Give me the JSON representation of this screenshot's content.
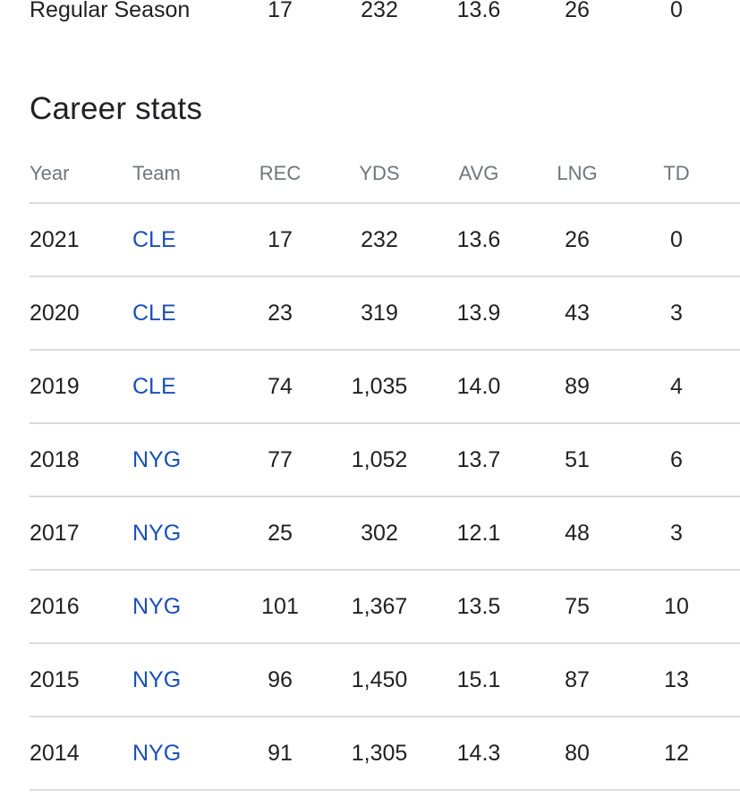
{
  "season_summary": {
    "label": "Regular Season",
    "rec": "17",
    "yds": "232",
    "avg": "13.6",
    "lng": "26",
    "td": "0"
  },
  "career": {
    "title": "Career stats",
    "columns": {
      "year": "Year",
      "team": "Team",
      "rec": "REC",
      "yds": "YDS",
      "avg": "AVG",
      "lng": "LNG",
      "td": "TD"
    },
    "rows": [
      {
        "year": "2021",
        "team": "CLE",
        "rec": "17",
        "yds": "232",
        "avg": "13.6",
        "lng": "26",
        "td": "0"
      },
      {
        "year": "2020",
        "team": "CLE",
        "rec": "23",
        "yds": "319",
        "avg": "13.9",
        "lng": "43",
        "td": "3"
      },
      {
        "year": "2019",
        "team": "CLE",
        "rec": "74",
        "yds": "1,035",
        "avg": "14.0",
        "lng": "89",
        "td": "4"
      },
      {
        "year": "2018",
        "team": "NYG",
        "rec": "77",
        "yds": "1,052",
        "avg": "13.7",
        "lng": "51",
        "td": "6"
      },
      {
        "year": "2017",
        "team": "NYG",
        "rec": "25",
        "yds": "302",
        "avg": "12.1",
        "lng": "48",
        "td": "3"
      },
      {
        "year": "2016",
        "team": "NYG",
        "rec": "101",
        "yds": "1,367",
        "avg": "13.5",
        "lng": "75",
        "td": "10"
      },
      {
        "year": "2015",
        "team": "NYG",
        "rec": "96",
        "yds": "1,450",
        "avg": "15.1",
        "lng": "87",
        "td": "13"
      },
      {
        "year": "2014",
        "team": "NYG",
        "rec": "91",
        "yds": "1,305",
        "avg": "14.3",
        "lng": "80",
        "td": "12"
      }
    ]
  },
  "colors": {
    "text": "#202124",
    "muted": "#70757a",
    "link": "#1a4fb8",
    "divider": "#dadce0"
  }
}
